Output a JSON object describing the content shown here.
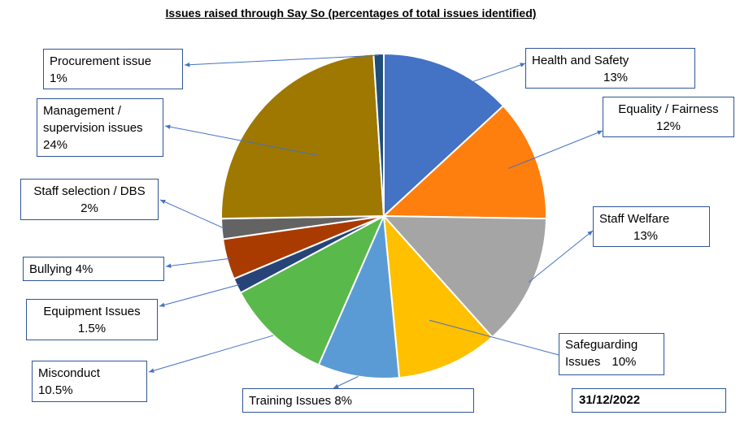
{
  "chart_data": {
    "type": "pie",
    "title": "Issues raised through Say So (percentages of total issues identified)",
    "date": "31/12/2022",
    "slices": [
      {
        "label": "Health and Safety",
        "pct_text": "13%",
        "value": 13,
        "color": "#4472C4"
      },
      {
        "label": "Equality / Fairness",
        "pct_text": "12%",
        "value": 12,
        "color": "#FF7F0E"
      },
      {
        "label": "Staff Welfare",
        "pct_text": "13%",
        "value": 13,
        "color": "#A5A5A5"
      },
      {
        "label": "Safeguarding\nIssues",
        "pct_text": "10%",
        "value": 10,
        "color": "#FFC000"
      },
      {
        "label": "Training Issues 8%",
        "pct_text": "",
        "value": 8,
        "color": "#5B9BD5"
      },
      {
        "label": "Misconduct",
        "pct_text": "10.5%",
        "value": 10.5,
        "color": "#5AB94B"
      },
      {
        "label": "Equipment Issues",
        "pct_text": "1.5%",
        "value": 1.5,
        "color": "#264478"
      },
      {
        "label": "Bullying 4%",
        "pct_text": "",
        "value": 4,
        "color": "#A93B00"
      },
      {
        "label": "Staff selection / DBS",
        "pct_text": "2%",
        "value": 2,
        "color": "#636363"
      },
      {
        "label": "Management /\nsupervision issues",
        "pct_text": "24%",
        "value": 24,
        "color": "#9E7800"
      },
      {
        "label": "Procurement issue",
        "pct_text": "1%",
        "value": 1,
        "color": "#1F4E79"
      }
    ]
  }
}
